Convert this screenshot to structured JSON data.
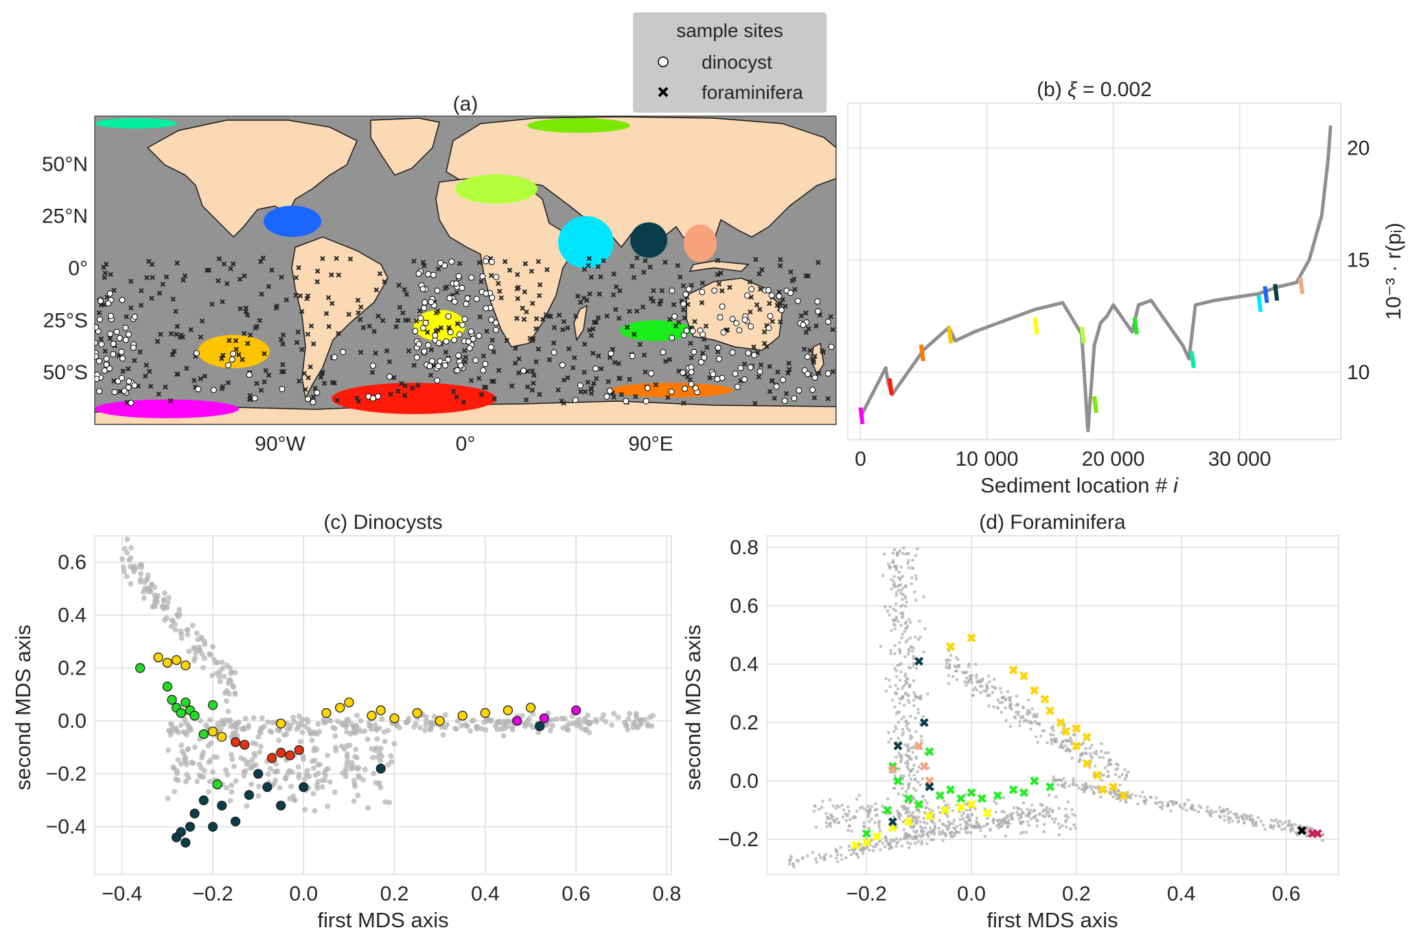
{
  "colors": {
    "land": "#fcd9b5",
    "ocean": "#939393",
    "grid": "#dedede",
    "background_points": "#a9a9a9",
    "legend_bg": "#c9c9c9",
    "regions": [
      "#ff00ff",
      "#ff1a0a",
      "#ff7a00",
      "#ffc400",
      "#ffff00",
      "#b4ff3c",
      "#1aee1a",
      "#7ae800",
      "#00f0a0",
      "#00e6ff",
      "#1a66ff",
      "#0a3d4a",
      "#f8a27e"
    ]
  },
  "legend": {
    "title": "sample sites",
    "items": [
      {
        "label": "dinocyst",
        "icon": "open-circle-icon"
      },
      {
        "label": "foraminifera",
        "icon": "x-marker-icon"
      }
    ]
  },
  "chart_data": [
    {
      "id": "a",
      "type": "scatter",
      "title": "(a)",
      "xlabel": "",
      "ylabel": "",
      "x_ticks": [
        "90°W",
        "0°",
        "90°E"
      ],
      "y_ticks": [
        "50°N",
        "25°N",
        "0°",
        "25°S",
        "50°S"
      ],
      "region_clusters": [
        {
          "name": "arctic-teal",
          "lon": [
            -180,
            -140
          ],
          "lat": [
            67,
            72
          ]
        },
        {
          "name": "arctic-green",
          "lon": [
            30,
            80
          ],
          "lat": [
            65,
            72
          ]
        },
        {
          "name": "gulf-of-mexico",
          "lon": [
            -98,
            -70
          ],
          "lat": [
            15,
            30
          ]
        },
        {
          "name": "mediterranean",
          "lon": [
            -5,
            35
          ],
          "lat": [
            31,
            45
          ]
        },
        {
          "name": "arabian-sea",
          "lon": [
            45,
            72
          ],
          "lat": [
            0,
            25
          ]
        },
        {
          "name": "bay-of-bengal",
          "lon": [
            80,
            98
          ],
          "lat": [
            5,
            22
          ]
        },
        {
          "name": "south-china-sea",
          "lon": [
            106,
            122
          ],
          "lat": [
            3,
            21
          ]
        },
        {
          "name": "south-atlantic",
          "lon": [
            -25,
            0
          ],
          "lat": [
            -35,
            -20
          ]
        },
        {
          "name": "south-pacific",
          "lon": [
            -130,
            -95
          ],
          "lat": [
            -48,
            -32
          ]
        },
        {
          "name": "south-indian",
          "lon": [
            75,
            110
          ],
          "lat": [
            -35,
            -25
          ]
        },
        {
          "name": "southern-ocean-pacific",
          "lon": [
            -180,
            -110
          ],
          "lat": [
            -72,
            -63
          ]
        },
        {
          "name": "southern-ocean-atlantic",
          "lon": [
            -65,
            15
          ],
          "lat": [
            -70,
            -55
          ]
        },
        {
          "name": "southern-ocean-indian",
          "lon": [
            70,
            130
          ],
          "lat": [
            -62,
            -55
          ]
        }
      ]
    },
    {
      "id": "b",
      "type": "scatter",
      "title_prefix": "(b) ",
      "title_symbol": "ξ",
      "title_value": " = 0.002",
      "xlabel": "Sediment location # ",
      "xlabel_var": "i",
      "ylabel": "10⁻³ · r(pᵢ)",
      "x_ticks": [
        "0",
        "10 000",
        "20 000",
        "30 000"
      ],
      "x_tick_values": [
        0,
        10000,
        20000,
        30000
      ],
      "y_ticks": [
        "10",
        "15",
        "20"
      ],
      "y_tick_values": [
        10,
        15,
        20
      ],
      "xlim": [
        -1000,
        38000
      ],
      "ylim": [
        7,
        22
      ],
      "curve_x": [
        0,
        2000,
        2200,
        2500,
        5000,
        7000,
        7500,
        9000,
        13800,
        16000,
        17500,
        18000,
        18500,
        19000,
        19500,
        20000,
        21500,
        22000,
        23000,
        25500,
        26000,
        26500,
        28000,
        31500,
        33000,
        34500,
        35500,
        36500,
        37000,
        37200
      ],
      "curve_y": [
        8,
        10.2,
        9.5,
        9.0,
        11.0,
        12,
        11.4,
        11.8,
        12.8,
        13.1,
        11.7,
        7.4,
        11.2,
        12.2,
        12.5,
        13.0,
        11.8,
        13.0,
        13.2,
        11.2,
        10.6,
        13.0,
        13.2,
        13.5,
        13.8,
        14.0,
        15.0,
        17.0,
        19.5,
        21.0
      ]
    },
    {
      "id": "c",
      "type": "scatter",
      "title": "(c) Dinocysts",
      "xlabel": "first MDS axis",
      "ylabel": "second MDS axis",
      "x_ticks": [
        "−0.4",
        "−0.2",
        "0.0",
        "0.2",
        "0.4",
        "0.6",
        "0.8"
      ],
      "x_tick_values": [
        -0.4,
        -0.2,
        0.0,
        0.2,
        0.4,
        0.6,
        0.8
      ],
      "y_ticks": [
        "−0.4",
        "−0.2",
        "0.0",
        "0.2",
        "0.4",
        "0.6"
      ],
      "y_tick_values": [
        -0.4,
        -0.2,
        0.0,
        0.2,
        0.4,
        0.6
      ],
      "xlim": [
        -0.46,
        0.81
      ],
      "ylim": [
        -0.58,
        0.7
      ],
      "series": [
        {
          "name": "yellow",
          "color": "#ffd400",
          "x": [
            -0.32,
            -0.3,
            -0.28,
            -0.26,
            -0.2,
            -0.18,
            -0.05,
            0.05,
            0.08,
            0.1,
            0.15,
            0.17,
            0.2,
            0.25,
            0.3,
            0.35,
            0.4,
            0.45,
            0.5
          ],
          "y": [
            0.24,
            0.22,
            0.23,
            0.21,
            -0.04,
            -0.06,
            -0.01,
            0.03,
            0.05,
            0.07,
            0.02,
            0.04,
            0.01,
            0.03,
            0.0,
            0.02,
            0.03,
            0.04,
            0.05
          ]
        },
        {
          "name": "green",
          "color": "#22dd22",
          "x": [
            -0.36,
            -0.3,
            -0.29,
            -0.28,
            -0.27,
            -0.26,
            -0.25,
            -0.24,
            -0.22,
            -0.2,
            -0.19
          ],
          "y": [
            0.2,
            0.13,
            0.08,
            0.05,
            0.03,
            0.07,
            0.04,
            0.02,
            -0.05,
            0.06,
            -0.24
          ]
        },
        {
          "name": "magenta",
          "color": "#e000e0",
          "x": [
            0.47,
            0.53,
            0.6
          ],
          "y": [
            0.0,
            0.01,
            0.04
          ]
        },
        {
          "name": "red",
          "color": "#e8310e",
          "x": [
            -0.15,
            -0.13,
            -0.07,
            -0.05,
            -0.03,
            -0.01
          ],
          "y": [
            -0.08,
            -0.09,
            -0.14,
            -0.12,
            -0.13,
            -0.11
          ]
        },
        {
          "name": "dark-teal",
          "color": "#0a3d4a",
          "x": [
            -0.28,
            -0.27,
            -0.26,
            -0.25,
            -0.24,
            -0.22,
            -0.2,
            -0.18,
            -0.15,
            -0.12,
            -0.1,
            -0.08,
            -0.05,
            0.0,
            0.17,
            0.52
          ],
          "y": [
            -0.44,
            -0.42,
            -0.46,
            -0.4,
            -0.35,
            -0.3,
            -0.4,
            -0.32,
            -0.38,
            -0.28,
            -0.2,
            -0.25,
            -0.32,
            -0.25,
            -0.18,
            -0.02
          ]
        }
      ]
    },
    {
      "id": "d",
      "type": "scatter",
      "title": "(d) Foraminifera",
      "xlabel": "first MDS axis",
      "ylabel": "second MDS axis",
      "x_ticks": [
        "−0.2",
        "0.0",
        "0.2",
        "0.4",
        "0.6"
      ],
      "x_tick_values": [
        -0.2,
        0.0,
        0.2,
        0.4,
        0.6
      ],
      "y_ticks": [
        "−0.2",
        "0.0",
        "0.2",
        "0.4",
        "0.6",
        "0.8"
      ],
      "y_tick_values": [
        -0.2,
        0.0,
        0.2,
        0.4,
        0.6,
        0.8
      ],
      "xlim": [
        -0.39,
        0.7
      ],
      "ylim": [
        -0.32,
        0.84
      ],
      "series": [
        {
          "name": "yellow",
          "color": "#ffd400",
          "x": [
            -0.04,
            0.0,
            0.08,
            0.1,
            0.12,
            0.14,
            0.15,
            0.17,
            0.18,
            0.2,
            0.22,
            0.24,
            0.25,
            0.27,
            0.29,
            0.2,
            0.22
          ],
          "y": [
            0.46,
            0.49,
            0.38,
            0.36,
            0.31,
            0.28,
            0.24,
            0.2,
            0.17,
            0.12,
            0.06,
            0.02,
            -0.03,
            -0.02,
            -0.05,
            0.18,
            0.15
          ]
        },
        {
          "name": "light-yellow",
          "color": "#ffff00",
          "x": [
            -0.22,
            -0.2,
            -0.18,
            -0.15,
            -0.12,
            -0.08,
            -0.05,
            -0.02,
            0.0,
            0.03
          ],
          "y": [
            -0.22,
            -0.21,
            -0.19,
            -0.16,
            -0.14,
            -0.12,
            -0.1,
            -0.09,
            -0.08,
            -0.11
          ]
        },
        {
          "name": "green",
          "color": "#22ee22",
          "x": [
            -0.2,
            -0.16,
            -0.15,
            -0.14,
            -0.12,
            -0.1,
            -0.08,
            -0.06,
            -0.04,
            -0.02,
            0.0,
            0.02,
            0.05,
            0.08,
            0.1,
            0.12,
            0.15
          ],
          "y": [
            -0.18,
            -0.1,
            0.05,
            0.0,
            -0.06,
            -0.08,
            0.1,
            -0.05,
            -0.03,
            -0.06,
            -0.04,
            -0.06,
            -0.05,
            -0.03,
            -0.04,
            0.0,
            -0.02
          ]
        },
        {
          "name": "salmon",
          "color": "#f8a27e",
          "x": [
            -0.15,
            -0.1,
            -0.09,
            -0.08
          ],
          "y": [
            0.04,
            0.12,
            0.05,
            0.0
          ]
        },
        {
          "name": "dark-teal",
          "color": "#0a3d4a",
          "x": [
            -0.1,
            -0.14,
            -0.09,
            -0.08,
            -0.15
          ],
          "y": [
            0.41,
            0.12,
            0.2,
            -0.02,
            -0.14
          ]
        },
        {
          "name": "black",
          "color": "#000000",
          "x": [
            0.63
          ],
          "y": [
            -0.17
          ]
        },
        {
          "name": "crimson",
          "color": "#cc1d4f",
          "x": [
            0.65,
            0.66
          ],
          "y": [
            -0.18,
            -0.18
          ]
        }
      ]
    }
  ]
}
